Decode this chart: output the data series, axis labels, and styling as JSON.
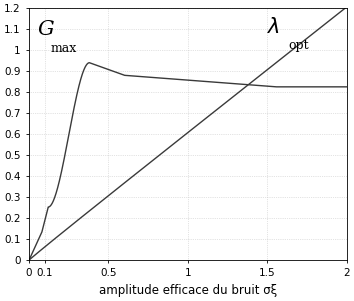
{
  "xlim": [
    0,
    2
  ],
  "ylim": [
    0,
    1.2
  ],
  "xticks": [
    0,
    0.1,
    0.5,
    1.0,
    1.5,
    2.0
  ],
  "xticklabels": [
    "0",
    "0.1",
    "0.5",
    "1",
    "1.5",
    "2"
  ],
  "yticks": [
    0,
    0.1,
    0.2,
    0.3,
    0.4,
    0.5,
    0.6,
    0.7,
    0.8,
    0.9,
    1.0,
    1.1,
    1.2
  ],
  "yticklabels": [
    "0",
    "0.1",
    "0.2",
    "0.3",
    "0.4",
    "0.5",
    "0.6",
    "0.7",
    "0.8",
    "0.9",
    "1",
    "1.1",
    "1.2"
  ],
  "xlabel": "amplitude efficace du bruit σξ",
  "grid_color": "#c8c8c8",
  "line_color": "#3a3a3a",
  "bg_color": "#ffffff",
  "figsize": [
    3.54,
    3.01
  ],
  "dpi": 100,
  "tick_fontsize": 7.5,
  "xlabel_fontsize": 8.5
}
